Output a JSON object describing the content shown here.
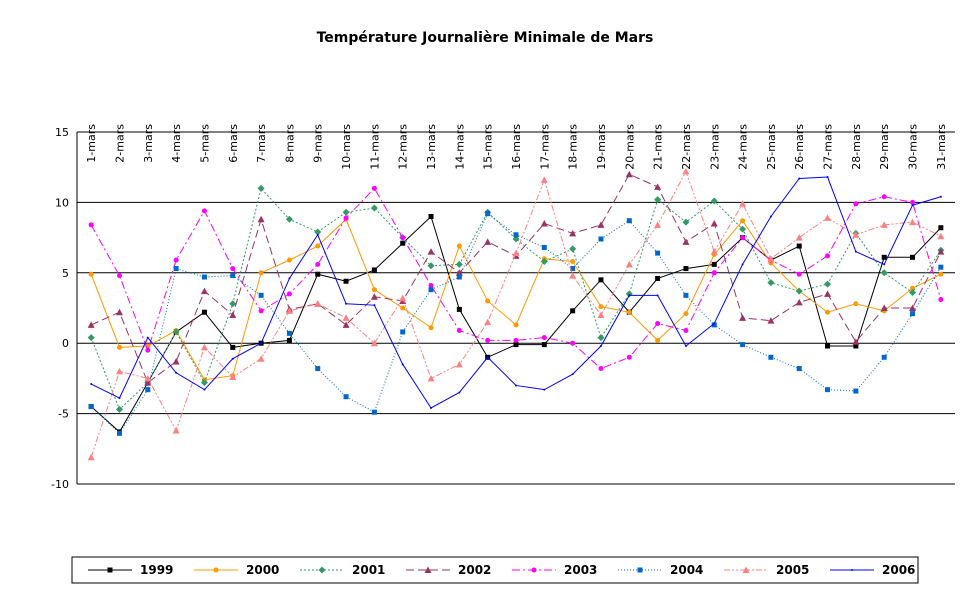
{
  "chart_data": {
    "type": "line",
    "title": "Température Journalière Minimale de Mars",
    "categories": [
      "1-mars",
      "2-mars",
      "3-mars",
      "4-mars",
      "5-mars",
      "6-mars",
      "7-mars",
      "8-mars",
      "9-mars",
      "10-mars",
      "11-mars",
      "12-mars",
      "13-mars",
      "14-mars",
      "15-mars",
      "16-mars",
      "17-mars",
      "18-mars",
      "19-mars",
      "20-mars",
      "21-mars",
      "22-mars",
      "23-mars",
      "24-mars",
      "25-mars",
      "26-mars",
      "27-mars",
      "28-mars",
      "29-mars",
      "30-mars",
      "31-mars"
    ],
    "ylim": [
      -10,
      15
    ],
    "yticks": [
      15,
      10,
      5,
      0,
      -5,
      -10
    ],
    "grid": true,
    "legend": "bottom",
    "series": [
      {
        "name": "1999",
        "color": "#000000",
        "dash": "none",
        "marker": "square",
        "values": [
          -4.5,
          -6.3,
          -2.8,
          0.8,
          2.2,
          -0.3,
          0,
          0.2,
          4.9,
          4.4,
          5.2,
          7.1,
          9,
          2.4,
          -1,
          -0.1,
          -0.1,
          2.3,
          4.5,
          2.2,
          4.6,
          5.3,
          5.6,
          7.5,
          5.9,
          6.9,
          -0.2,
          -0.2,
          6.1,
          6.1,
          8.2
        ]
      },
      {
        "name": "2000",
        "color": "#ff9900",
        "dash": "none",
        "marker": "circle",
        "values": [
          4.9,
          -0.3,
          -0.2,
          0.9,
          -2.6,
          -2.3,
          5,
          5.9,
          6.9,
          8.8,
          3.8,
          2.5,
          1.1,
          6.9,
          3,
          1.3,
          6,
          5.8,
          2.6,
          2.2,
          0.2,
          2.1,
          6.3,
          8.7,
          5.7,
          3.7,
          2.2,
          2.8,
          2.3,
          3.9,
          4.9
        ]
      },
      {
        "name": "2001",
        "color": "#339966",
        "dash": "2 2",
        "marker": "diamond",
        "values": [
          0.4,
          -4.7,
          -2.8,
          0.8,
          -2.8,
          2.8,
          11,
          8.8,
          7.9,
          9.3,
          9.6,
          7.5,
          5.5,
          5.6,
          9.3,
          7.4,
          5.8,
          6.7,
          0.4,
          3.5,
          10.2,
          8.6,
          10.1,
          8.1,
          4.3,
          3.7,
          4.2,
          7.8,
          5,
          3.6,
          6.6
        ]
      },
      {
        "name": "2002",
        "color": "#993366",
        "dash": "8 4",
        "marker": "triangle",
        "values": [
          1.3,
          2.2,
          -2.8,
          -1.3,
          3.7,
          2,
          8.8,
          2.4,
          2.8,
          1.3,
          3.3,
          3,
          6.5,
          5,
          7.2,
          6.2,
          8.5,
          7.8,
          8.4,
          12,
          11.1,
          7.2,
          8.5,
          1.8,
          1.6,
          2.9,
          3.5,
          0.1,
          2.5,
          2.5,
          6.5
        ]
      },
      {
        "name": "2003",
        "color": "#ff00ff",
        "dash": "8 3 2 3",
        "marker": "circle",
        "values": [
          8.4,
          4.8,
          -0.5,
          5.9,
          9.4,
          5.3,
          2.3,
          3.5,
          5.6,
          8.9,
          11,
          7.5,
          4.1,
          0.9,
          0.2,
          0.2,
          0.4,
          0,
          -1.8,
          -1,
          1.4,
          0.9,
          5,
          7.5,
          5.9,
          4.9,
          6.2,
          9.9,
          10.4,
          10,
          3.1
        ]
      },
      {
        "name": "2004",
        "color": "#0066cc",
        "dash": "1 2",
        "marker": "square",
        "values": [
          -4.5,
          -6.4,
          -3.3,
          5.3,
          4.7,
          4.8,
          3.4,
          0.7,
          -1.8,
          -3.8,
          -4.9,
          0.8,
          3.8,
          4.7,
          9.2,
          7.7,
          6.8,
          5.3,
          7.4,
          8.7,
          6.4,
          3.4,
          1.3,
          -0.1,
          -1,
          -1.8,
          -3.3,
          -3.4,
          -1,
          2.1,
          5.4
        ]
      },
      {
        "name": "2005",
        "color": "#ff8080",
        "dash": "6 2 2 2 2 2",
        "marker": "triangle",
        "values": [
          -8.1,
          -2,
          -2.5,
          -6.2,
          -0.3,
          -2.4,
          -1.1,
          2.3,
          2.8,
          1.8,
          0,
          3.2,
          -2.5,
          -1.5,
          1.5,
          6.4,
          11.6,
          4.8,
          2,
          5.6,
          8.4,
          12.2,
          6.5,
          9.9,
          6,
          7.5,
          8.9,
          7.7,
          8.4,
          8.6,
          7.6
        ]
      },
      {
        "name": "2006",
        "color": "#0000ff",
        "dash": "none",
        "marker": "none",
        "values": [
          -2.9,
          -3.9,
          0.4,
          -2.1,
          -3.3,
          -1.1,
          0,
          4.6,
          7.7,
          2.8,
          2.7,
          -1.5,
          -4.6,
          -3.5,
          -1,
          -3,
          -3.3,
          -2.2,
          -0.2,
          3.4,
          3.4,
          -0.2,
          1.4,
          5.6,
          9,
          11.7,
          11.8,
          6.5,
          5.6,
          9.8,
          10.4
        ]
      }
    ]
  }
}
